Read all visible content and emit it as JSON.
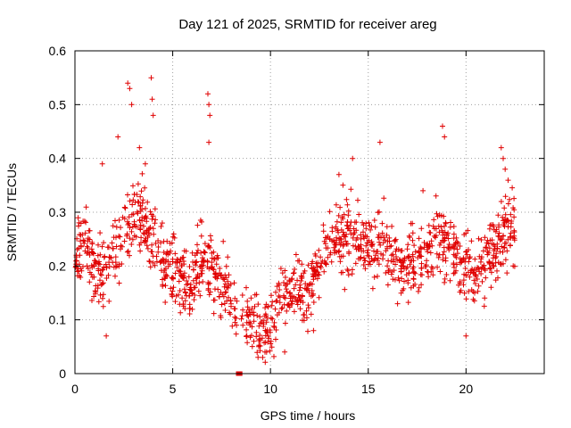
{
  "chart_data": {
    "type": "scatter",
    "title": "Day 121 of 2025, SRMTID for receiver areg",
    "xlabel": "GPS time / hours",
    "ylabel": "SRMTID / TECUs",
    "xlim": [
      0,
      24
    ],
    "ylim": [
      0,
      0.6
    ],
    "xticks": [
      0,
      5,
      10,
      15,
      20
    ],
    "xtick_labels": [
      "0",
      "5",
      "10",
      "15",
      "20"
    ],
    "yticks": [
      0,
      0.1,
      0.2,
      0.3,
      0.4,
      0.5,
      0.6
    ],
    "ytick_labels": [
      "0",
      "0.1",
      "0.2",
      "0.3",
      "0.4",
      "0.5",
      "0.6"
    ],
    "grid": true,
    "legend": "none",
    "marker": "plus",
    "color": "#e00000",
    "trend": [
      [
        0.0,
        0.22
      ],
      [
        0.5,
        0.25
      ],
      [
        1.0,
        0.18
      ],
      [
        1.5,
        0.2
      ],
      [
        2.0,
        0.22
      ],
      [
        2.5,
        0.27
      ],
      [
        3.0,
        0.3
      ],
      [
        3.5,
        0.28
      ],
      [
        4.0,
        0.25
      ],
      [
        4.5,
        0.2
      ],
      [
        5.0,
        0.2
      ],
      [
        5.5,
        0.18
      ],
      [
        6.0,
        0.17
      ],
      [
        6.5,
        0.22
      ],
      [
        7.0,
        0.2
      ],
      [
        7.5,
        0.17
      ],
      [
        8.0,
        0.14
      ],
      [
        8.5,
        0.11
      ],
      [
        9.0,
        0.11
      ],
      [
        9.5,
        0.08
      ],
      [
        10.0,
        0.1
      ],
      [
        10.5,
        0.13
      ],
      [
        11.0,
        0.15
      ],
      [
        11.5,
        0.16
      ],
      [
        12.0,
        0.15
      ],
      [
        12.5,
        0.21
      ],
      [
        13.0,
        0.24
      ],
      [
        13.5,
        0.25
      ],
      [
        14.0,
        0.26
      ],
      [
        14.5,
        0.25
      ],
      [
        15.0,
        0.23
      ],
      [
        15.5,
        0.24
      ],
      [
        16.0,
        0.23
      ],
      [
        16.5,
        0.2
      ],
      [
        17.0,
        0.2
      ],
      [
        17.5,
        0.21
      ],
      [
        18.0,
        0.22
      ],
      [
        18.5,
        0.25
      ],
      [
        19.0,
        0.24
      ],
      [
        19.5,
        0.22
      ],
      [
        20.0,
        0.2
      ],
      [
        20.5,
        0.19
      ],
      [
        21.0,
        0.21
      ],
      [
        21.5,
        0.23
      ],
      [
        22.0,
        0.27
      ],
      [
        22.5,
        0.28
      ]
    ],
    "spread": 0.065,
    "outliers": [
      [
        2.7,
        0.54
      ],
      [
        2.8,
        0.53
      ],
      [
        3.9,
        0.55
      ],
      [
        3.95,
        0.51
      ],
      [
        4.0,
        0.48
      ],
      [
        6.8,
        0.52
      ],
      [
        6.85,
        0.5
      ],
      [
        6.9,
        0.48
      ],
      [
        6.85,
        0.43
      ],
      [
        2.9,
        0.5
      ],
      [
        3.6,
        0.39
      ],
      [
        3.3,
        0.42
      ],
      [
        2.2,
        0.44
      ],
      [
        15.6,
        0.43
      ],
      [
        14.2,
        0.4
      ],
      [
        18.8,
        0.46
      ],
      [
        18.9,
        0.44
      ],
      [
        21.8,
        0.42
      ],
      [
        21.9,
        0.4
      ],
      [
        22.0,
        0.38
      ],
      [
        13.5,
        0.37
      ],
      [
        17.8,
        0.34
      ],
      [
        1.4,
        0.39
      ],
      [
        9.6,
        0.03
      ],
      [
        9.8,
        0.04
      ],
      [
        9.4,
        0.05
      ],
      [
        16.5,
        0.13
      ],
      [
        20.0,
        0.07
      ],
      [
        1.6,
        0.07
      ],
      [
        12.2,
        0.08
      ]
    ],
    "gap": [
      8.3,
      8.5
    ]
  }
}
